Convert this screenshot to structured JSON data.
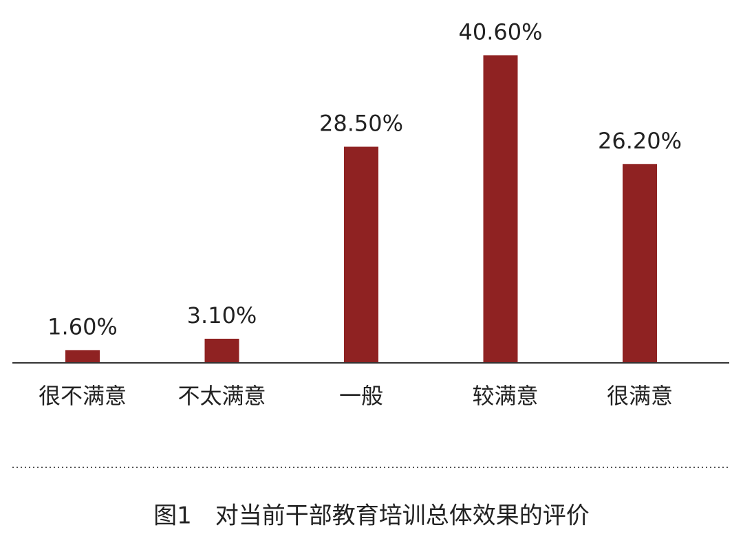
{
  "chart_data": {
    "type": "bar",
    "title": "图1　对当前干部教育培训总体效果的评价",
    "categories": [
      "很不满意",
      "不太满意",
      "一般",
      "较满意",
      "很满意"
    ],
    "values": [
      1.6,
      3.1,
      28.5,
      40.6,
      26.2
    ],
    "value_labels": [
      "1.60%",
      "3.10%",
      "28.50%",
      "40.60%",
      "26.20%"
    ],
    "color": "#8f2222"
  }
}
